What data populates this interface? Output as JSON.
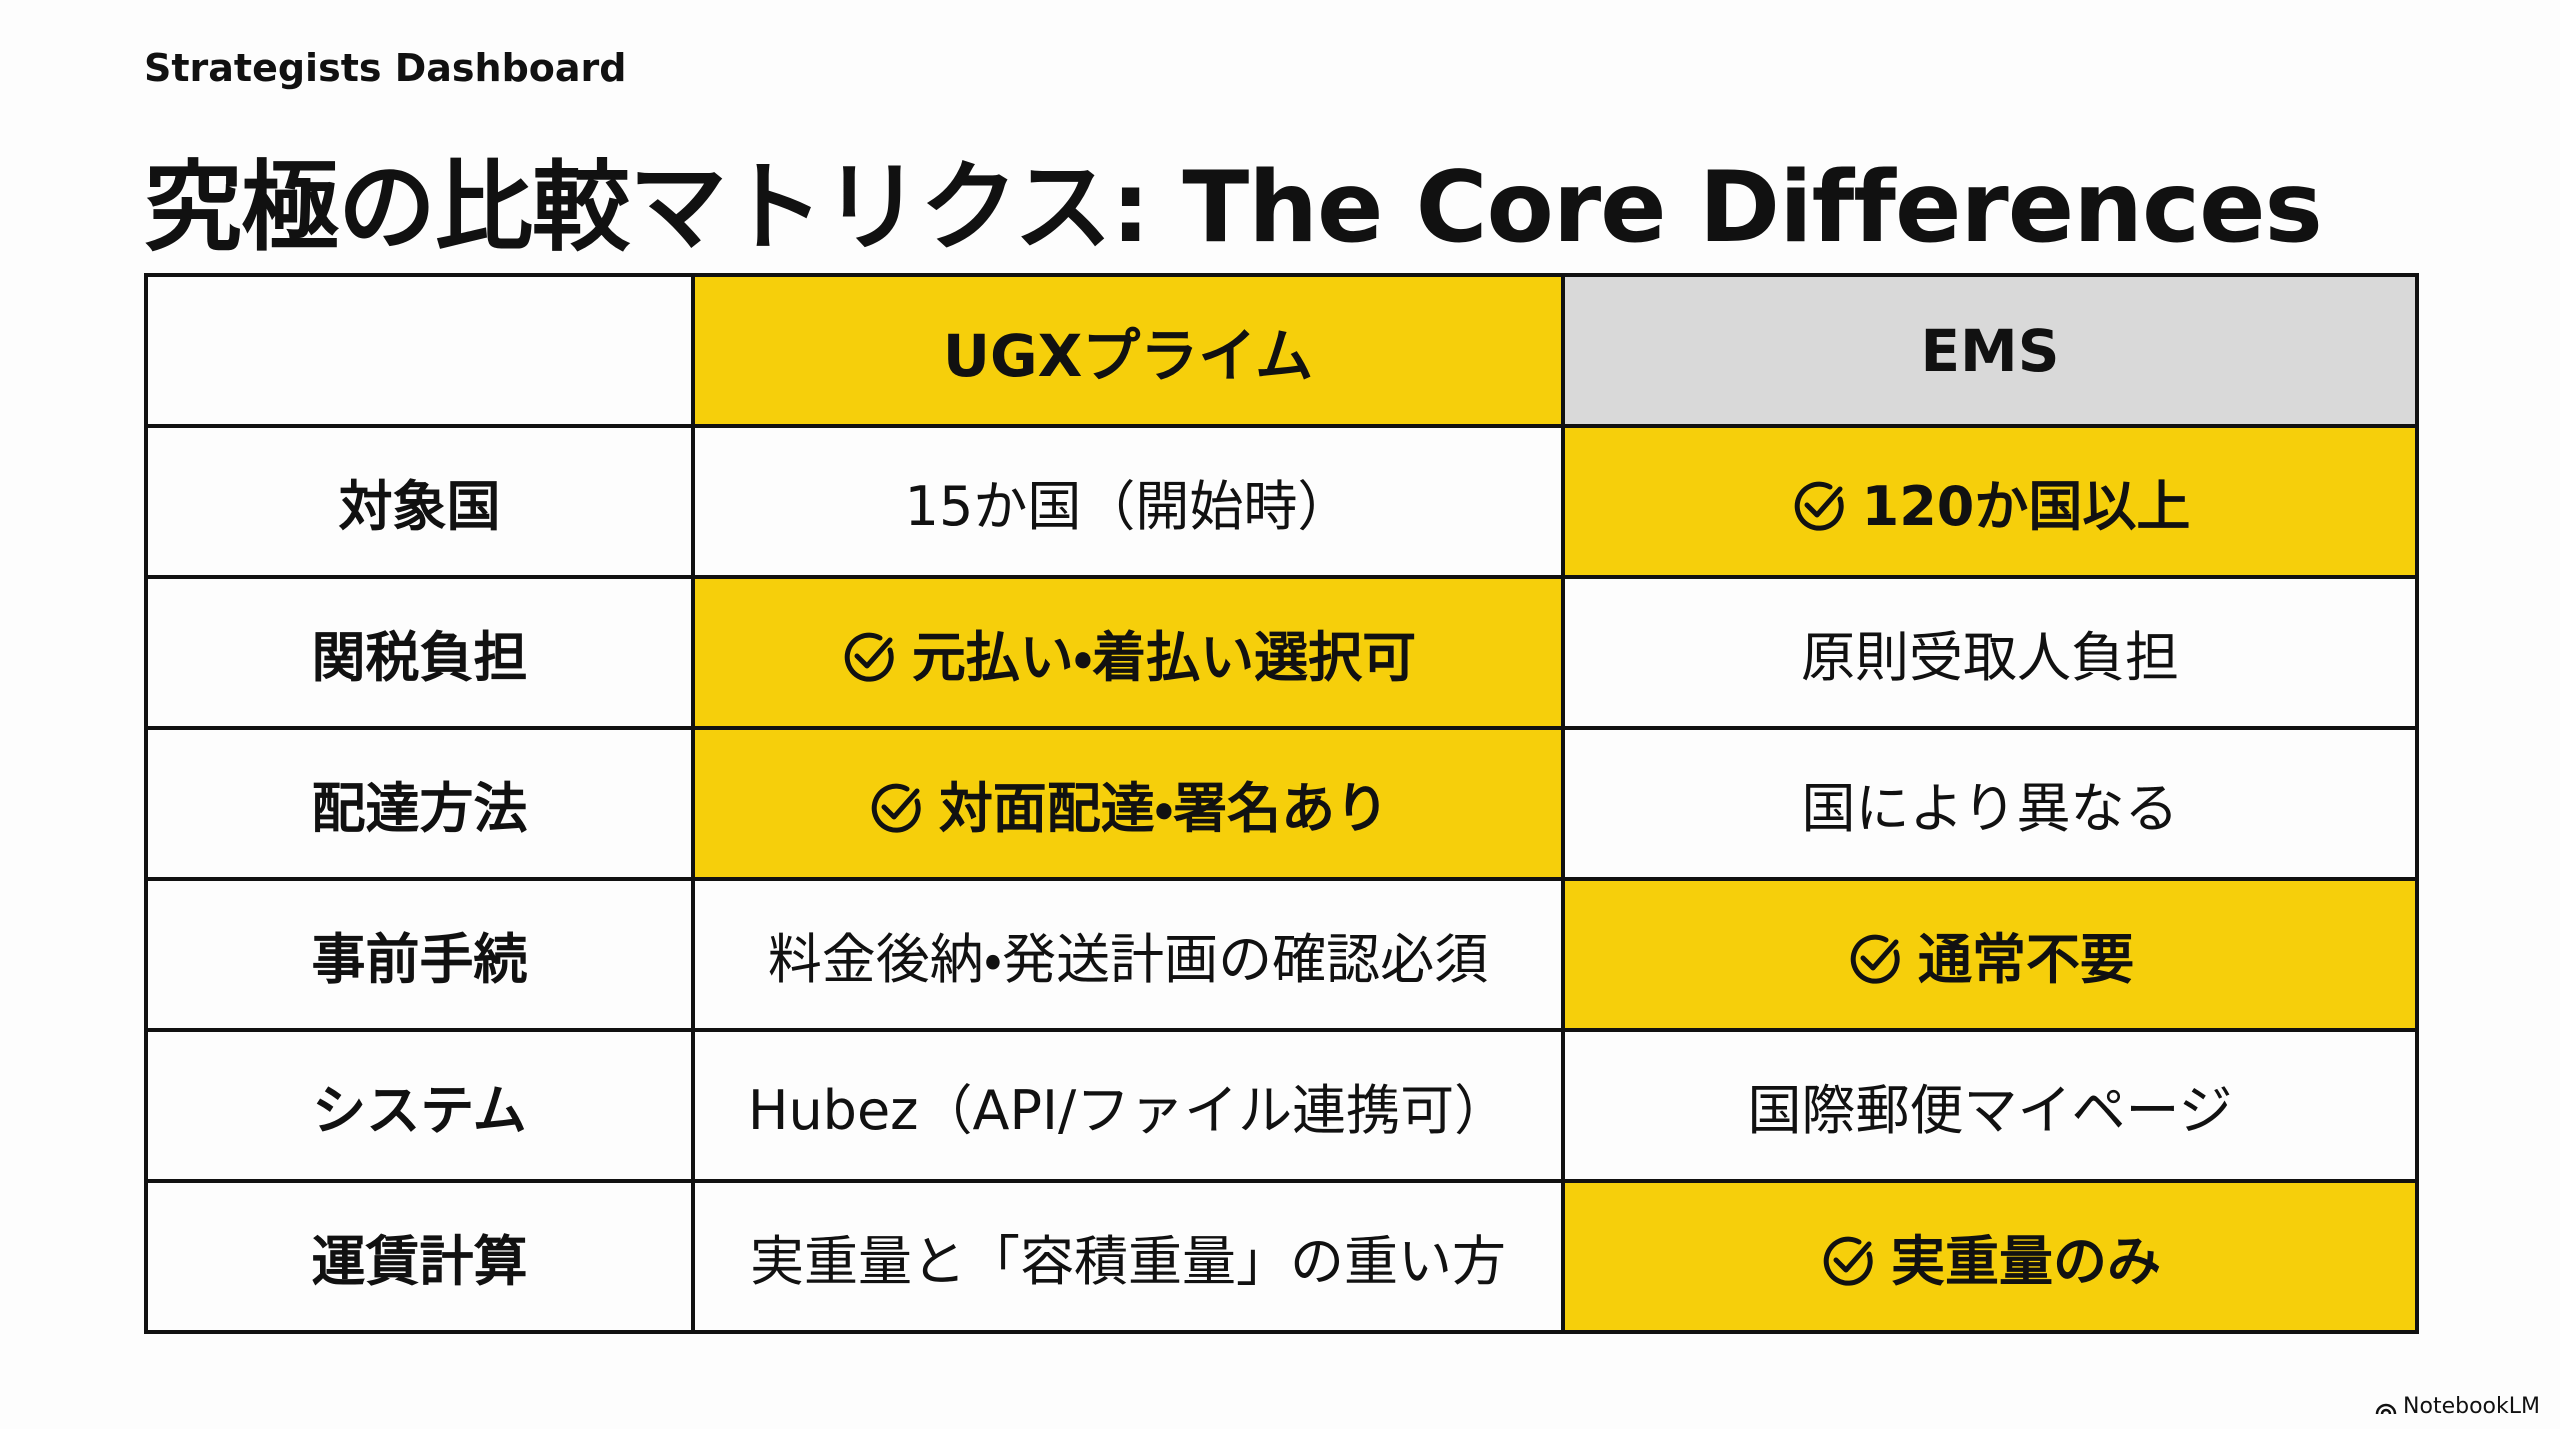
{
  "header": {
    "brand": "Strategists Dashboard",
    "title": "究極の比較マトリクス: The Core Differences"
  },
  "table": {
    "columns": [
      {
        "text": "UGXプライム",
        "highlight": true
      },
      {
        "text": "EMS",
        "highlight": false
      }
    ],
    "rows": [
      {
        "label": "対象国",
        "cells": [
          {
            "text": "15か国（開始時）",
            "highlight": false
          },
          {
            "text": "120か国以上",
            "highlight": true
          }
        ]
      },
      {
        "label": "関税負担",
        "cells": [
          {
            "text": "元払い・着払い選択可",
            "highlight": true
          },
          {
            "text": "原則受取人負担",
            "highlight": false
          }
        ]
      },
      {
        "label": "配達方法",
        "cells": [
          {
            "text": "対面配達・署名あり",
            "highlight": true
          },
          {
            "text": "国により異なる",
            "highlight": false
          }
        ]
      },
      {
        "label": "事前手続",
        "cells": [
          {
            "text": "料金後納・発送計画の確認必須",
            "highlight": false
          },
          {
            "text": "通常不要",
            "highlight": true
          }
        ]
      },
      {
        "label": "システム",
        "cells": [
          {
            "text": "Hubez（API/ファイル連携可）",
            "highlight": false
          },
          {
            "text": "国際郵便マイページ",
            "highlight": false
          }
        ]
      },
      {
        "label": "運賃計算",
        "cells": [
          {
            "text": "実重量と「容積重量」の重い方",
            "highlight": false
          },
          {
            "text": "実重量のみ",
            "highlight": true
          }
        ]
      }
    ]
  },
  "footer": {
    "label": "NotebookLM"
  }
}
